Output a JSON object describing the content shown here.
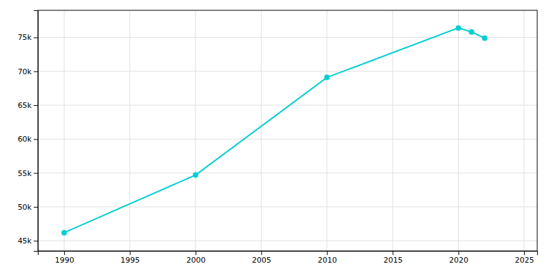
{
  "chart_data": {
    "type": "line",
    "x": [
      1990,
      2000,
      2010,
      2020,
      2021,
      2022
    ],
    "values": [
      46200,
      54700,
      69100,
      76400,
      75800,
      74900
    ],
    "color": "#00CED1",
    "marker": "circle",
    "xlim": [
      1988,
      2026
    ],
    "ylim": [
      43500,
      79000
    ],
    "xticks": [
      1990,
      1995,
      2000,
      2005,
      2010,
      2015,
      2020,
      2025
    ],
    "yticks": [
      {
        "value": 45000,
        "label": "45k"
      },
      {
        "value": 50000,
        "label": "50k"
      },
      {
        "value": 55000,
        "label": "55k"
      },
      {
        "value": 60000,
        "label": "60k"
      },
      {
        "value": 65000,
        "label": "65k"
      },
      {
        "value": 70000,
        "label": "70k"
      },
      {
        "value": 75000,
        "label": "75k"
      }
    ],
    "grid": true
  }
}
